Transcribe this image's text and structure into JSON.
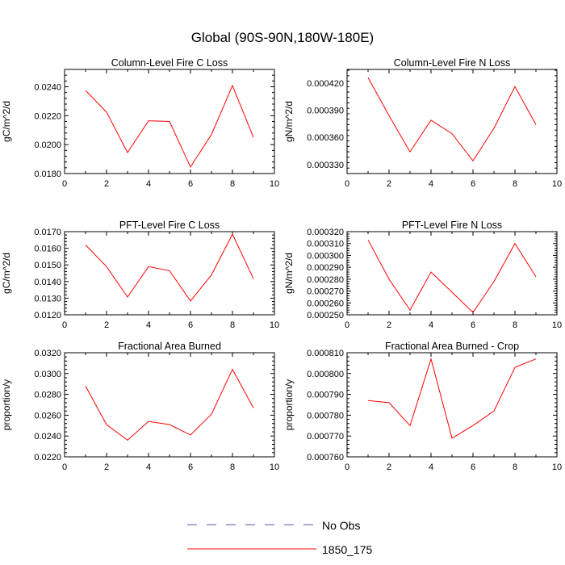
{
  "figure": {
    "title": "Global (90S-90N,180W-180E)",
    "legend": {
      "placement": "bottom-center",
      "entries": [
        {
          "label": "No Obs",
          "style": "dashed",
          "color": "#5555aa"
        },
        {
          "label": "1850_175",
          "style": "solid",
          "color": "#ff0000"
        }
      ]
    }
  },
  "chart_data": [
    {
      "type": "line",
      "title": "Column-Level Fire C Loss",
      "ylabel": "gC/m^2/d",
      "xlim": [
        0,
        10
      ],
      "xticks": [
        "0",
        "2",
        "4",
        "6",
        "8",
        "10"
      ],
      "ylim": [
        0.018,
        0.0252
      ],
      "yticks": [
        "0.0180",
        "0.0200",
        "0.0220",
        "0.0240"
      ],
      "series": [
        {
          "color": "#ff0000",
          "x": [
            1,
            2,
            3,
            4,
            5,
            6,
            7,
            8,
            9
          ],
          "y": [
            0.02375,
            0.02225,
            0.01945,
            0.02165,
            0.0216,
            0.01845,
            0.0207,
            0.02408,
            0.0205
          ]
        }
      ]
    },
    {
      "type": "line",
      "title": "Column-Level Fire N Loss",
      "ylabel": "gN/m^2/d",
      "xlim": [
        0,
        10
      ],
      "xticks": [
        "0",
        "2",
        "4",
        "6",
        "8",
        "10"
      ],
      "ylim": [
        0.00032,
        0.000435
      ],
      "yticks": [
        "0.000330",
        "0.000360",
        "0.000390",
        "0.000420"
      ],
      "series": [
        {
          "color": "#ff0000",
          "x": [
            1,
            2,
            3,
            4,
            5,
            6,
            7,
            8,
            9
          ],
          "y": [
            0.000426,
            0.000384,
            0.000344,
            0.000379,
            0.000364,
            0.000334,
            0.00037,
            0.000416,
            0.000374
          ]
        }
      ]
    },
    {
      "type": "line",
      "title": "PFT-Level Fire C Loss",
      "ylabel": "gC/m^2/d",
      "xlim": [
        0,
        10
      ],
      "xticks": [
        "0",
        "2",
        "4",
        "6",
        "8",
        "10"
      ],
      "ylim": [
        0.012,
        0.017
      ],
      "yticks": [
        "0.0120",
        "0.0130",
        "0.0140",
        "0.0150",
        "0.0160",
        "0.0170"
      ],
      "series": [
        {
          "color": "#ff0000",
          "x": [
            1,
            2,
            3,
            4,
            5,
            6,
            7,
            8,
            9
          ],
          "y": [
            0.0162,
            0.0149,
            0.01307,
            0.0149,
            0.01465,
            0.01283,
            0.0144,
            0.01685,
            0.01417
          ]
        }
      ]
    },
    {
      "type": "line",
      "title": "PFT-Level Fire N Loss",
      "ylabel": "gN/m^2/d",
      "xlim": [
        0,
        10
      ],
      "xticks": [
        "0",
        "2",
        "4",
        "6",
        "8",
        "10"
      ],
      "ylim": [
        0.00025,
        0.00032
      ],
      "yticks": [
        "0.000250",
        "0.000260",
        "0.000270",
        "0.000280",
        "0.000290",
        "0.000300",
        "0.000310",
        "0.000320"
      ],
      "series": [
        {
          "color": "#ff0000",
          "x": [
            1,
            2,
            3,
            4,
            5,
            6,
            7,
            8,
            9
          ],
          "y": [
            0.000313,
            0.00028,
            0.000254,
            0.000286,
            0.000269,
            0.000252,
            0.000278,
            0.00031,
            0.000282
          ]
        }
      ]
    },
    {
      "type": "line",
      "title": "Fractional Area Burned",
      "ylabel": "proportion/y",
      "xlim": [
        0,
        10
      ],
      "xticks": [
        "0",
        "2",
        "4",
        "6",
        "8",
        "10"
      ],
      "ylim": [
        0.022,
        0.032
      ],
      "yticks": [
        "0.0220",
        "0.0240",
        "0.0260",
        "0.0280",
        "0.0300",
        "0.0320"
      ],
      "series": [
        {
          "color": "#ff0000",
          "x": [
            1,
            2,
            3,
            4,
            5,
            6,
            7,
            8,
            9
          ],
          "y": [
            0.0288,
            0.0251,
            0.0236,
            0.0254,
            0.0251,
            0.0241,
            0.0261,
            0.0304,
            0.0267
          ]
        }
      ]
    },
    {
      "type": "line",
      "title": "Fractional Area Burned - Crop",
      "ylabel": "proportion/y",
      "xlim": [
        0,
        10
      ],
      "xticks": [
        "0",
        "2",
        "4",
        "6",
        "8",
        "10"
      ],
      "ylim": [
        0.00076,
        0.00081
      ],
      "yticks": [
        "0.000760",
        "0.000770",
        "0.000780",
        "0.000790",
        "0.000800",
        "0.000810"
      ],
      "series": [
        {
          "color": "#ff0000",
          "x": [
            1,
            2,
            3,
            4,
            5,
            6,
            7,
            8,
            9
          ],
          "y": [
            0.000787,
            0.000786,
            0.000775,
            0.000807,
            0.000769,
            0.000775,
            0.000782,
            0.000803,
            0.000807
          ]
        }
      ]
    }
  ]
}
